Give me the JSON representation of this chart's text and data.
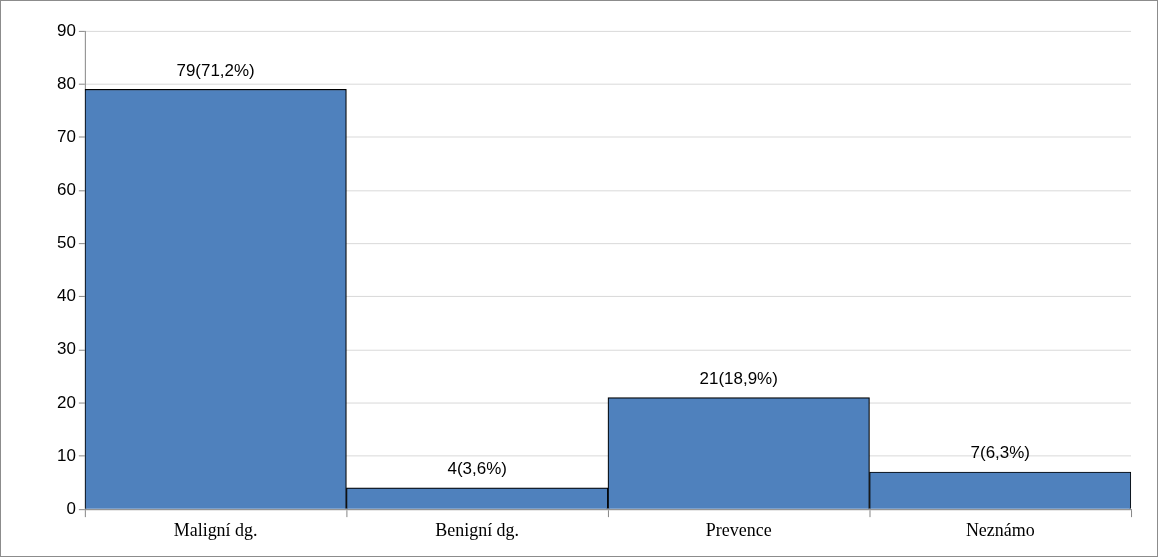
{
  "chart_data": {
    "type": "bar",
    "categories": [
      "Maligní dg.",
      "Benigní dg.",
      "Prevence",
      "Neznámo"
    ],
    "values": [
      79,
      4,
      21,
      7
    ],
    "value_labels": [
      "79(71,2%)",
      "4(3,6%)",
      "21(18,9%)",
      "7(6,3%)"
    ],
    "color": "#4f81bd",
    "ylim": [
      0,
      90
    ],
    "yticks": [
      0,
      10,
      20,
      30,
      40,
      50,
      60,
      70,
      80,
      90
    ],
    "grid": "y"
  }
}
